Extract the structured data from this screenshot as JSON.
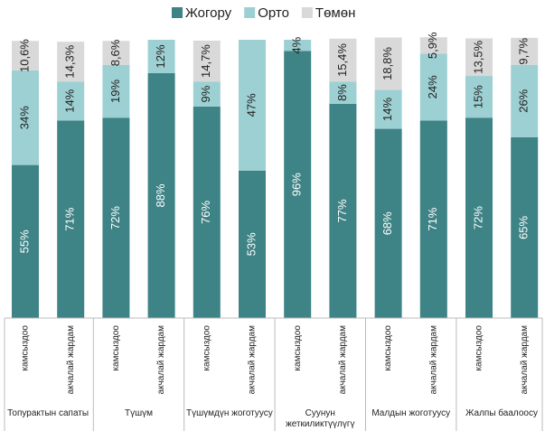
{
  "chart_data": {
    "type": "stacked_bar",
    "groups": [
      {
        "name": "Топурактын сапаты",
        "categories": [
          "камсыздоо",
          "акчалай жардам"
        ]
      },
      {
        "name": "Түшүм",
        "categories": [
          "камсыздоо",
          "акчалай жардам"
        ]
      },
      {
        "name": "Түшүмдүн жоготуусу",
        "categories": [
          "камсыздоо",
          "акчалай жардам"
        ]
      },
      {
        "name": "Суунун жеткиликтүүлүгү",
        "categories": [
          "камсыздоо",
          "акчалай жардам"
        ]
      },
      {
        "name": "Малдын жоготуусу",
        "categories": [
          "камсыздоо",
          "акчалай жардам"
        ]
      },
      {
        "name": "Жалпы баалоосу",
        "categories": [
          "камсыздоо",
          "акчалай жардам"
        ]
      }
    ],
    "series": [
      {
        "name": "Жогору",
        "color": "#3e8385",
        "label_color": "#ffffff",
        "values": [
          55,
          71,
          72,
          88,
          76,
          53,
          96,
          77,
          68,
          71,
          72,
          65
        ],
        "value_labels": [
          "55%",
          "71%",
          "72%",
          "88%",
          "76%",
          "53%",
          "96%",
          "77%",
          "68%",
          "71%",
          "72%",
          "65%"
        ]
      },
      {
        "name": "Орто",
        "color": "#9dd0d3",
        "label_color": "#222222",
        "values": [
          34,
          14,
          19,
          12,
          9,
          47,
          4,
          8,
          14,
          24,
          15,
          26
        ],
        "value_labels": [
          "34%",
          "14%",
          "19%",
          "12%",
          "9%",
          "47%",
          "4%",
          "8%",
          "14%",
          "24%",
          "15%",
          "26%"
        ]
      },
      {
        "name": "Төмөн",
        "color": "#d9d9d9",
        "label_color": "#222222",
        "values": [
          10.6,
          14.3,
          8.6,
          null,
          14.7,
          null,
          null,
          15.4,
          18.8,
          5.9,
          13.5,
          9.7
        ],
        "value_labels": [
          "10,6%",
          "14,3%",
          "8,6%",
          null,
          "14,7%",
          null,
          null,
          "15,4%",
          "18,8%",
          "5,9%",
          "13,5%",
          "9,7%"
        ]
      }
    ],
    "ylim": [
      0,
      100
    ]
  }
}
